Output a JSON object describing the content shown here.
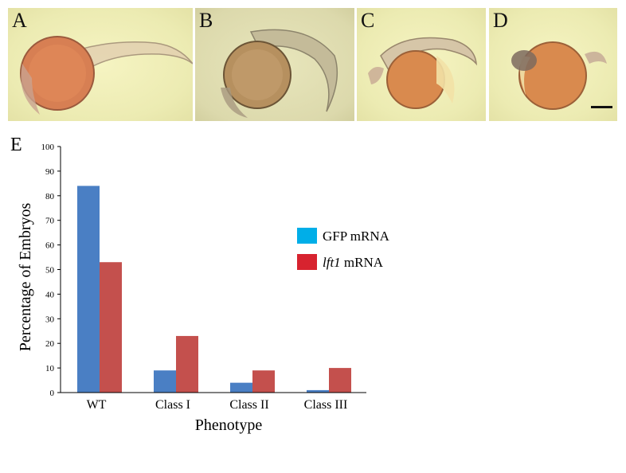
{
  "panels": [
    {
      "label": "A"
    },
    {
      "label": "B"
    },
    {
      "label": "C"
    },
    {
      "label": "D"
    }
  ],
  "chart_panel_label": "E",
  "chart_data": {
    "type": "bar",
    "categories": [
      "WT",
      "Class I",
      "Class II",
      "Class III"
    ],
    "series": [
      {
        "name": "GFP mRNA",
        "values": [
          84,
          9,
          4,
          1
        ],
        "color": "#4a7fc4"
      },
      {
        "name": "lft1 mRNA",
        "values": [
          53,
          23,
          9,
          10
        ],
        "color": "#c4504d"
      }
    ],
    "legend": [
      {
        "italic": "",
        "text": "GFP mRNA",
        "color": "#00aee8"
      },
      {
        "italic": "lft1",
        "text": " mRNA",
        "color": "#d7232f"
      }
    ],
    "xlabel": "Phenotype",
    "ylabel": "Percentage of Embryos",
    "ylim": [
      0,
      100
    ],
    "yticks": [
      0,
      10,
      20,
      30,
      40,
      50,
      60,
      70,
      80,
      90,
      100
    ],
    "legend_position": "right",
    "grid": false
  }
}
